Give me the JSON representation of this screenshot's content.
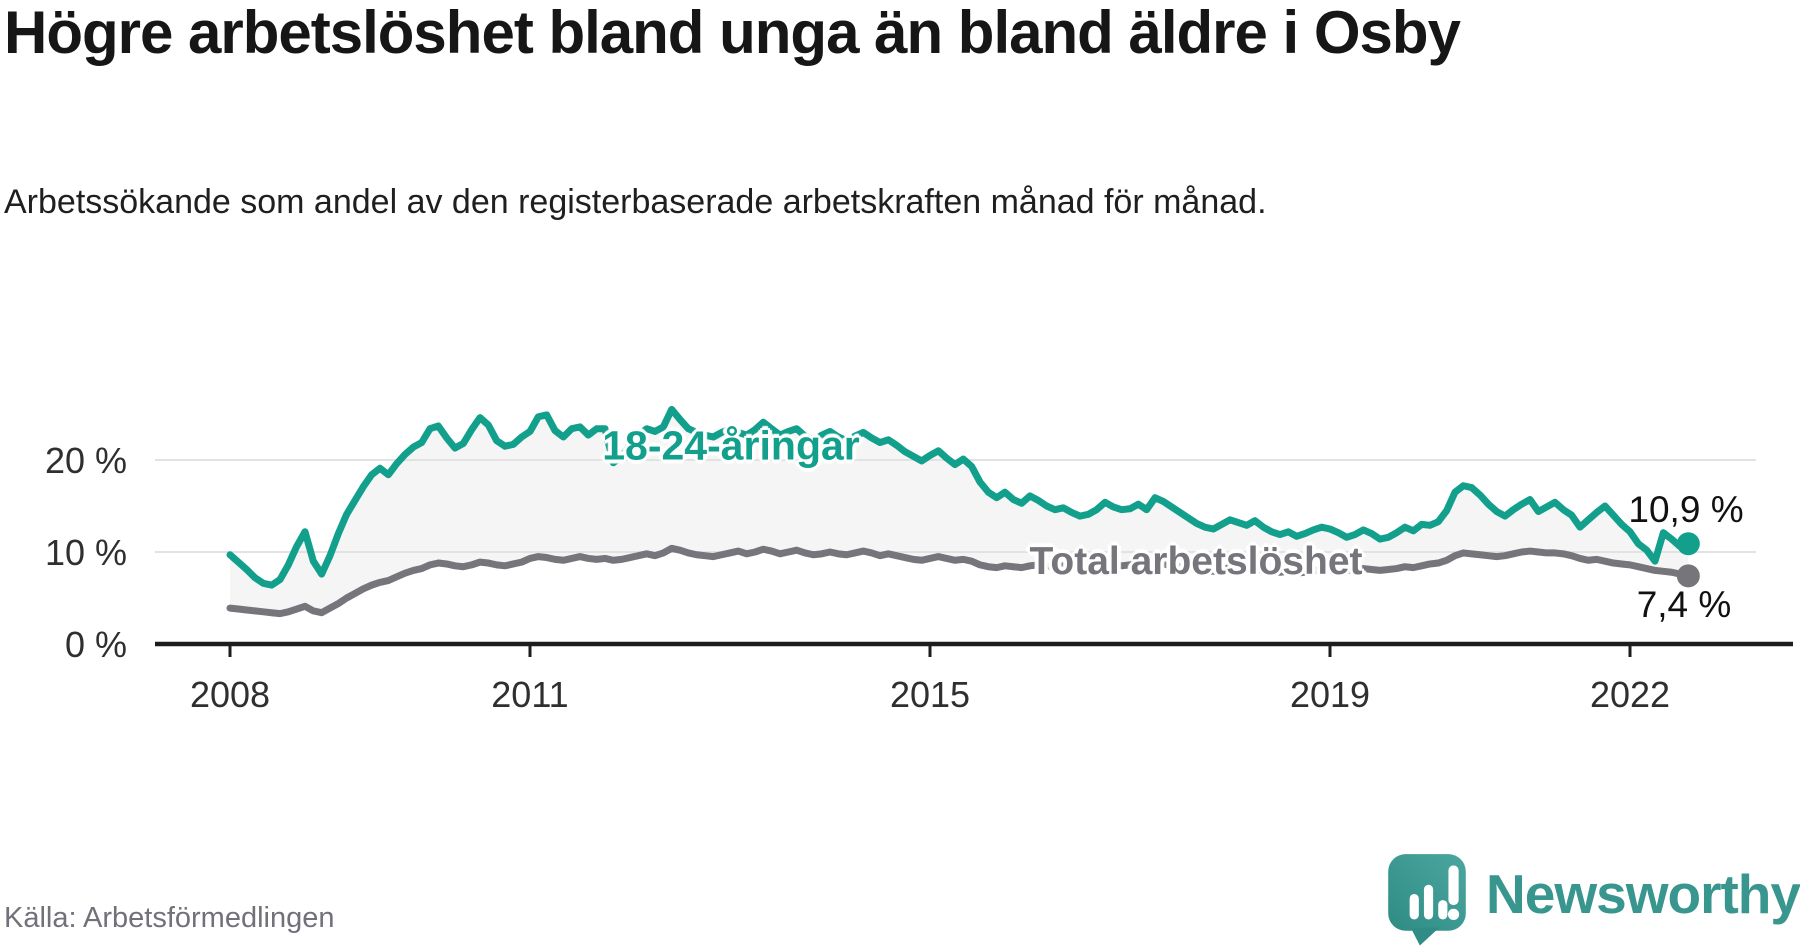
{
  "header": {
    "title": "Högre arbetslöshet bland unga än bland äldre i Osby",
    "subtitle": "Arbetssökande som andel av den registerbaserade arbetskraften månad för månad."
  },
  "footer": {
    "source": "Källa: Arbetsförmedlingen",
    "brand_wordmark": "Newsworthy",
    "brand_icon": "newsworthy-speech-bubble-bar-chart-icon"
  },
  "colors": {
    "accent_teal": "#12A08D",
    "series_gray": "#75757B",
    "fill_between": "#F5F5F5",
    "gridline": "#E2E2E2",
    "axis": "#1D1D1B",
    "tick_text": "#2F2F2F",
    "title_text": "#161616",
    "source_text": "#71717A",
    "logo_teal_light": "#4BA69E",
    "logo_teal_dark": "#2E8C85",
    "wordmark_teal": "#39968E"
  },
  "chart_data": {
    "type": "line",
    "x_unit": "month",
    "x_range": "2008-01 to 2022-08, monthly",
    "ylim": [
      0,
      27
    ],
    "grid": true,
    "fill_between_series": true,
    "yticks": [
      {
        "value": 0,
        "label": "0 %"
      },
      {
        "value": 10,
        "label": "10 %"
      },
      {
        "value": 20,
        "label": "20 %"
      }
    ],
    "xticks": [
      {
        "year": 2008,
        "label": "2008"
      },
      {
        "year": 2011,
        "label": "2011"
      },
      {
        "year": 2015,
        "label": "2015"
      },
      {
        "year": 2019,
        "label": "2019"
      },
      {
        "year": 2022,
        "label": "2022"
      }
    ],
    "series": [
      {
        "name": "18-24-åringar",
        "color": "#12A08D",
        "end_value": 10.9,
        "end_label": "10,9 %",
        "values": [
          9.7,
          8.9,
          8.1,
          7.2,
          6.6,
          6.4,
          7.0,
          8.6,
          10.6,
          12.2,
          9.0,
          7.6,
          9.6,
          12.0,
          14.1,
          15.6,
          17.1,
          18.4,
          19.1,
          18.4,
          19.6,
          20.6,
          21.4,
          21.9,
          23.4,
          23.7,
          22.4,
          21.3,
          21.8,
          23.3,
          24.6,
          23.8,
          22.1,
          21.5,
          21.7,
          22.5,
          23.1,
          24.7,
          24.9,
          23.2,
          22.5,
          23.4,
          23.6,
          22.7,
          23.4,
          23.4,
          19.7,
          20.4,
          21.6,
          22.7,
          23.4,
          23.1,
          23.6,
          25.5,
          24.4,
          23.4,
          23.0,
          22.7,
          22.5,
          23.0,
          23.4,
          23.0,
          22.7,
          23.3,
          24.1,
          23.4,
          22.7,
          23.1,
          23.4,
          22.6,
          22.2,
          22.7,
          23.1,
          22.5,
          22.1,
          22.6,
          23.0,
          22.4,
          21.9,
          22.2,
          21.6,
          20.9,
          20.4,
          19.9,
          20.5,
          21.0,
          20.2,
          19.5,
          20.1,
          19.3,
          17.6,
          16.5,
          15.9,
          16.5,
          15.7,
          15.3,
          16.1,
          15.6,
          15.0,
          14.6,
          14.8,
          14.3,
          13.9,
          14.1,
          14.6,
          15.4,
          14.9,
          14.6,
          14.7,
          15.2,
          14.6,
          15.9,
          15.5,
          14.9,
          14.3,
          13.7,
          13.1,
          12.7,
          12.5,
          13.0,
          13.5,
          13.2,
          12.9,
          13.4,
          12.7,
          12.2,
          11.9,
          12.2,
          11.7,
          12.0,
          12.4,
          12.7,
          12.5,
          12.1,
          11.6,
          11.9,
          12.4,
          12.0,
          11.4,
          11.6,
          12.1,
          12.7,
          12.3,
          13.0,
          12.9,
          13.3,
          14.5,
          16.5,
          17.2,
          17.0,
          16.2,
          15.2,
          14.4,
          13.9,
          14.6,
          15.2,
          15.7,
          14.4,
          14.9,
          15.4,
          14.6,
          14.0,
          12.7,
          13.5,
          14.3,
          15.0,
          14.0,
          13.0,
          12.2,
          10.9,
          10.2,
          9.0,
          12.1,
          11.4,
          10.6,
          10.9
        ]
      },
      {
        "name": "Total arbetslöshet",
        "color": "#75757B",
        "end_value": 7.4,
        "end_label": "7,4 %",
        "values": [
          3.9,
          3.8,
          3.7,
          3.6,
          3.5,
          3.4,
          3.3,
          3.5,
          3.8,
          4.1,
          3.6,
          3.4,
          3.9,
          4.4,
          5.0,
          5.5,
          6.0,
          6.4,
          6.7,
          6.9,
          7.3,
          7.7,
          8.0,
          8.2,
          8.6,
          8.8,
          8.7,
          8.5,
          8.4,
          8.6,
          8.9,
          8.8,
          8.6,
          8.5,
          8.7,
          8.9,
          9.3,
          9.5,
          9.4,
          9.2,
          9.1,
          9.3,
          9.5,
          9.3,
          9.2,
          9.3,
          9.1,
          9.2,
          9.4,
          9.6,
          9.8,
          9.6,
          9.9,
          10.4,
          10.2,
          9.9,
          9.7,
          9.6,
          9.5,
          9.7,
          9.9,
          10.1,
          9.8,
          10.0,
          10.3,
          10.1,
          9.8,
          10.0,
          10.2,
          9.9,
          9.7,
          9.8,
          10.0,
          9.8,
          9.7,
          9.9,
          10.1,
          9.9,
          9.6,
          9.8,
          9.6,
          9.4,
          9.2,
          9.1,
          9.3,
          9.5,
          9.3,
          9.1,
          9.2,
          9.0,
          8.6,
          8.4,
          8.3,
          8.5,
          8.4,
          8.3,
          8.5,
          8.6,
          8.5,
          8.4,
          8.5,
          8.3,
          8.2,
          8.3,
          8.5,
          8.7,
          8.6,
          8.5,
          8.6,
          8.7,
          8.5,
          8.8,
          8.7,
          8.5,
          8.4,
          8.3,
          8.1,
          8.0,
          7.9,
          8.1,
          8.3,
          8.2,
          8.1,
          8.2,
          8.0,
          7.9,
          7.8,
          7.9,
          7.7,
          7.8,
          8.0,
          8.1,
          8.2,
          8.1,
          8.0,
          8.1,
          8.2,
          8.1,
          8.0,
          8.1,
          8.2,
          8.4,
          8.3,
          8.5,
          8.7,
          8.8,
          9.1,
          9.6,
          9.9,
          9.8,
          9.7,
          9.6,
          9.5,
          9.6,
          9.8,
          10.0,
          10.1,
          10.0,
          9.9,
          9.9,
          9.8,
          9.6,
          9.3,
          9.1,
          9.2,
          9.0,
          8.8,
          8.7,
          8.6,
          8.4,
          8.2,
          8.0,
          7.9,
          7.8,
          7.6,
          7.4
        ]
      }
    ]
  }
}
